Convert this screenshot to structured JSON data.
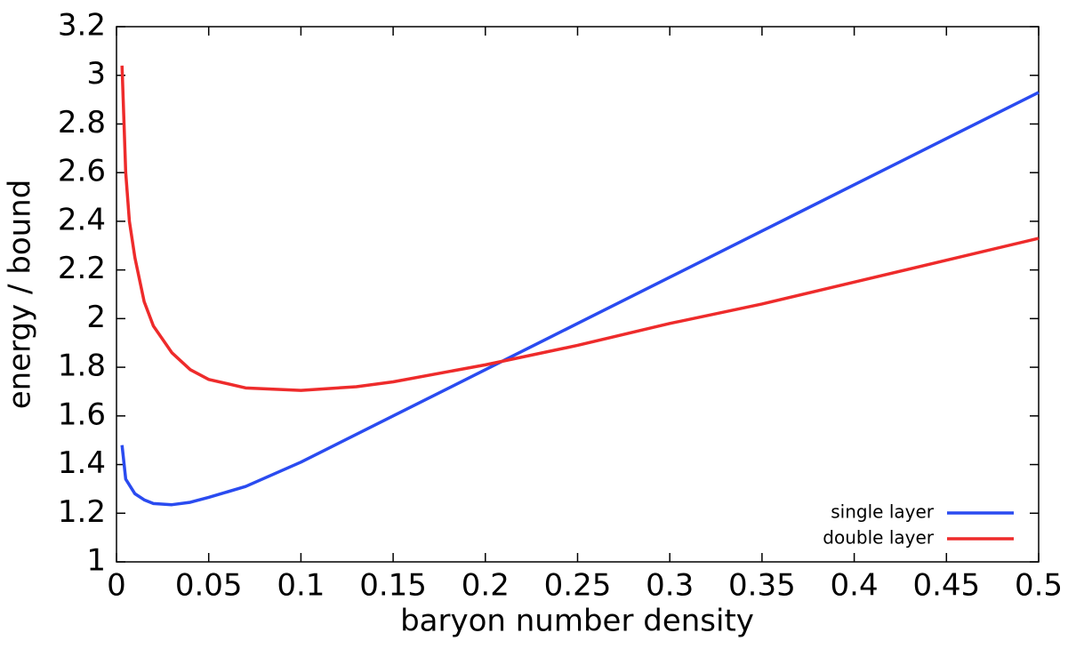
{
  "chart_data": {
    "type": "line",
    "xlabel": "baryon number density",
    "ylabel": "energy / bound",
    "xlim": [
      0,
      0.5
    ],
    "ylim": [
      1,
      3.2
    ],
    "xticks": [
      0,
      0.05,
      0.1,
      0.15,
      0.2,
      0.25,
      0.3,
      0.35,
      0.4,
      0.45,
      0.5
    ],
    "yticks": [
      1,
      1.2,
      1.4,
      1.6,
      1.8,
      2,
      2.2,
      2.4,
      2.6,
      2.8,
      3,
      3.2
    ],
    "legend": "bottom-right",
    "series": [
      {
        "name": "single layer",
        "color": "#2a4bf0",
        "x": [
          0.003,
          0.005,
          0.01,
          0.015,
          0.02,
          0.03,
          0.04,
          0.05,
          0.07,
          0.1,
          0.15,
          0.2,
          0.25,
          0.3,
          0.35,
          0.4,
          0.45,
          0.5
        ],
        "values": [
          1.48,
          1.34,
          1.28,
          1.255,
          1.24,
          1.235,
          1.245,
          1.265,
          1.31,
          1.41,
          1.6,
          1.79,
          1.98,
          2.17,
          2.36,
          2.55,
          2.74,
          2.93
        ]
      },
      {
        "name": "double layer",
        "color": "#ee2b2b",
        "x": [
          0.003,
          0.005,
          0.007,
          0.01,
          0.015,
          0.02,
          0.03,
          0.04,
          0.05,
          0.07,
          0.1,
          0.13,
          0.15,
          0.2,
          0.25,
          0.3,
          0.35,
          0.4,
          0.45,
          0.5
        ],
        "values": [
          3.04,
          2.6,
          2.4,
          2.25,
          2.07,
          1.97,
          1.86,
          1.79,
          1.75,
          1.715,
          1.705,
          1.72,
          1.74,
          1.81,
          1.89,
          1.98,
          2.06,
          2.15,
          2.24,
          2.33
        ]
      }
    ]
  }
}
